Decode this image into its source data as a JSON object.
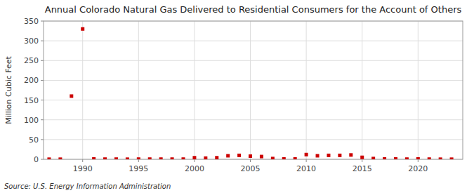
{
  "chart_data": {
    "type": "scatter",
    "title": "Annual Colorado Natural Gas Delivered to Residential Consumers for the Account of Others",
    "ylabel": "Million Cubic Feet",
    "annotations": [
      "Source: U.S. Energy Information Administration"
    ],
    "x": [
      1987,
      1988,
      1989,
      1990,
      1991,
      1992,
      1993,
      1994,
      1995,
      1996,
      1997,
      1998,
      1999,
      2000,
      2001,
      2002,
      2003,
      2004,
      2005,
      2006,
      2007,
      2008,
      2009,
      2010,
      2011,
      2012,
      2013,
      2014,
      2015,
      2016,
      2017,
      2018,
      2019,
      2020,
      2021,
      2022,
      2023
    ],
    "values": [
      0.3,
      0.3,
      160,
      330,
      1.0,
      0.5,
      0.5,
      0.3,
      0.5,
      0.5,
      0.5,
      0.5,
      0.5,
      4,
      3,
      4,
      9,
      10,
      8,
      7,
      2,
      1,
      1,
      12,
      9,
      10,
      10,
      11,
      5,
      2,
      1,
      1,
      0.5,
      1,
      0.5,
      0.3,
      0.3
    ],
    "color": "#cc0000",
    "marker": "square",
    "xlim": [
      1986.5,
      2024
    ],
    "ylim": [
      0,
      350
    ],
    "xticks": [
      1990,
      1995,
      2000,
      2005,
      2010,
      2015,
      2020
    ],
    "yticks": [
      0,
      50,
      100,
      150,
      200,
      250,
      300,
      350
    ],
    "grid": true
  }
}
